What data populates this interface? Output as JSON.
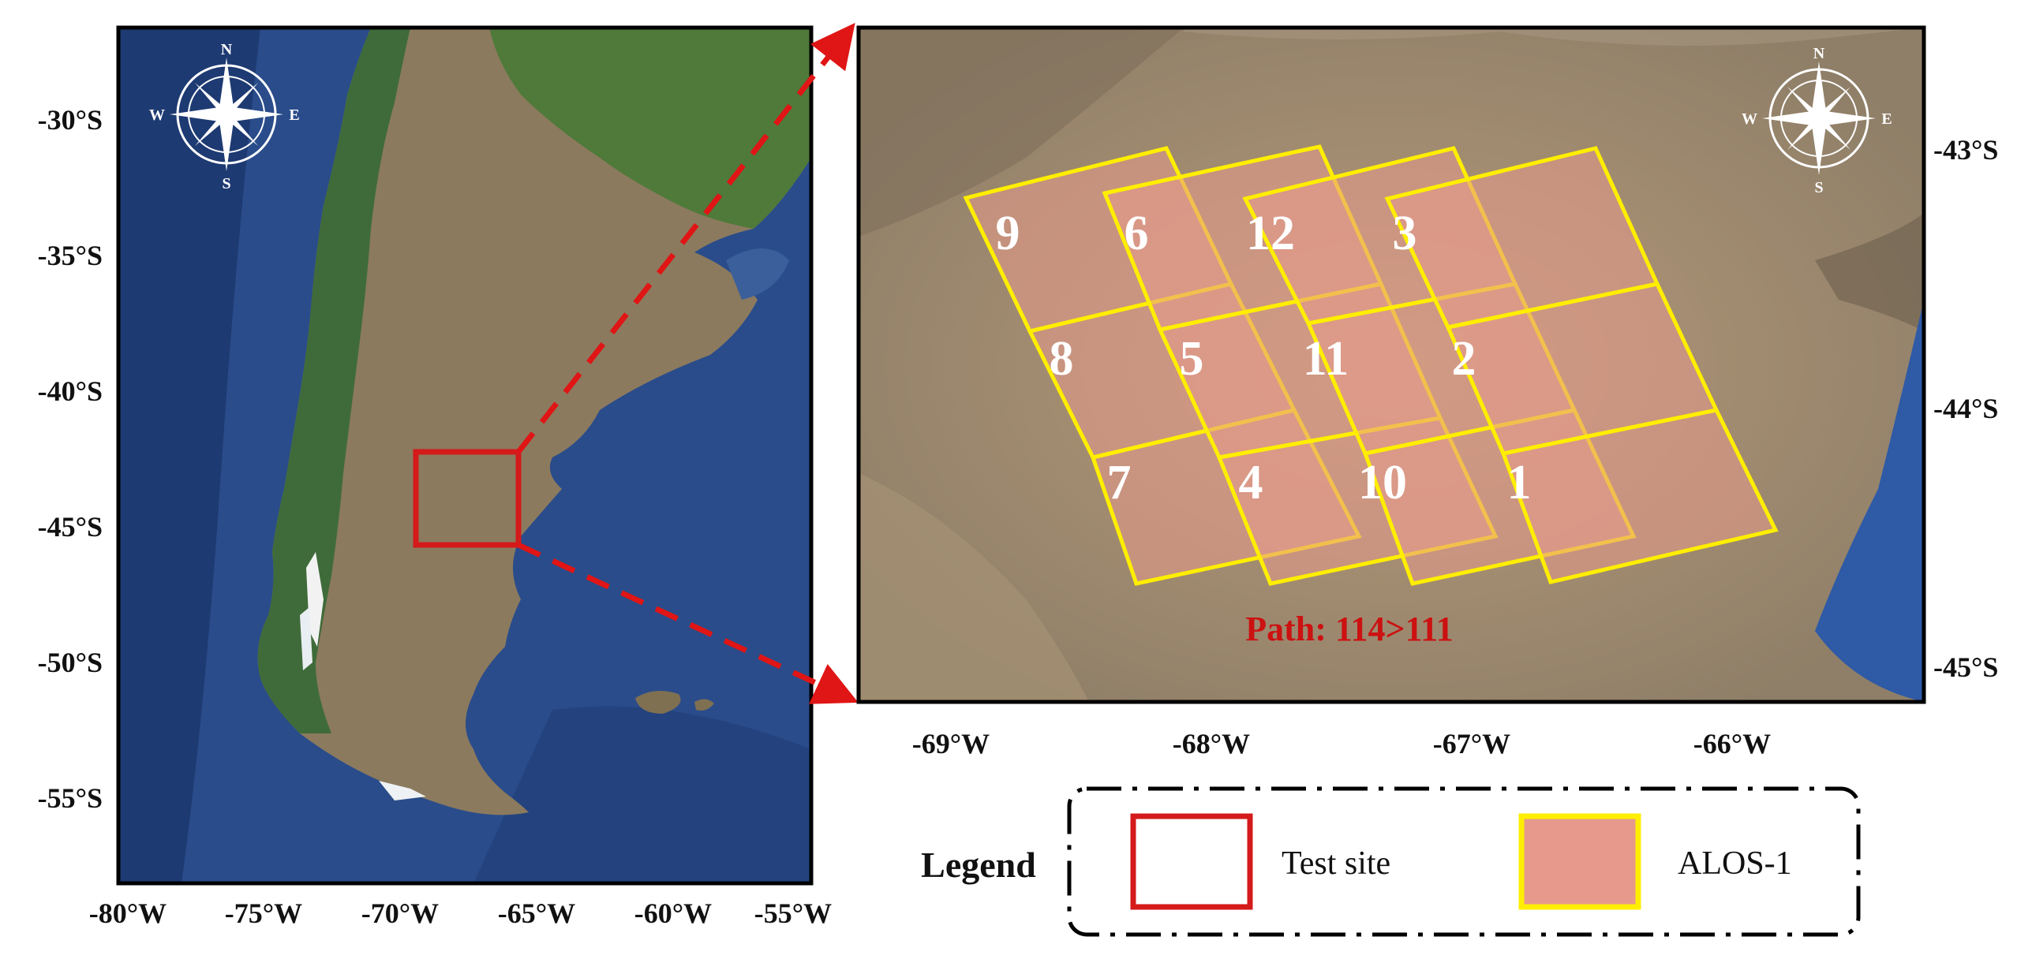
{
  "colors": {
    "test_site": "#d41a1a",
    "alos_outline": "#ffee00",
    "alos_fill": "#e79a8c",
    "ocean": "#2d4f8c",
    "land_green": "#4d7a3c",
    "land_brown": "#8e7a5c"
  },
  "left_map": {
    "y_ticks": [
      "-30°S",
      "-35°S",
      "-40°S",
      "-45°S",
      "-50°S",
      "-55°S"
    ],
    "x_ticks": [
      "-80°W",
      "-75°W",
      "-70°W",
      "-65°W",
      "-60°W",
      "-55°W"
    ],
    "compass": {
      "n": "N",
      "s": "S",
      "e": "E",
      "w": "W"
    }
  },
  "right_map": {
    "y_ticks": [
      "-43°S",
      "-44°S",
      "-45°S"
    ],
    "x_ticks": [
      "-69°W",
      "-68°W",
      "-67°W",
      "-66°W"
    ],
    "compass": {
      "n": "N",
      "s": "S",
      "e": "E",
      "w": "W"
    },
    "scenes": [
      "1",
      "2",
      "3",
      "4",
      "5",
      "6",
      "7",
      "8",
      "9",
      "10",
      "11",
      "12"
    ],
    "path_label": "Path: 114>111"
  },
  "legend": {
    "title": "Legend",
    "items": [
      {
        "label": "Test site",
        "icon": "test-site-swatch"
      },
      {
        "label": "ALOS-1",
        "icon": "alos-swatch"
      }
    ]
  }
}
